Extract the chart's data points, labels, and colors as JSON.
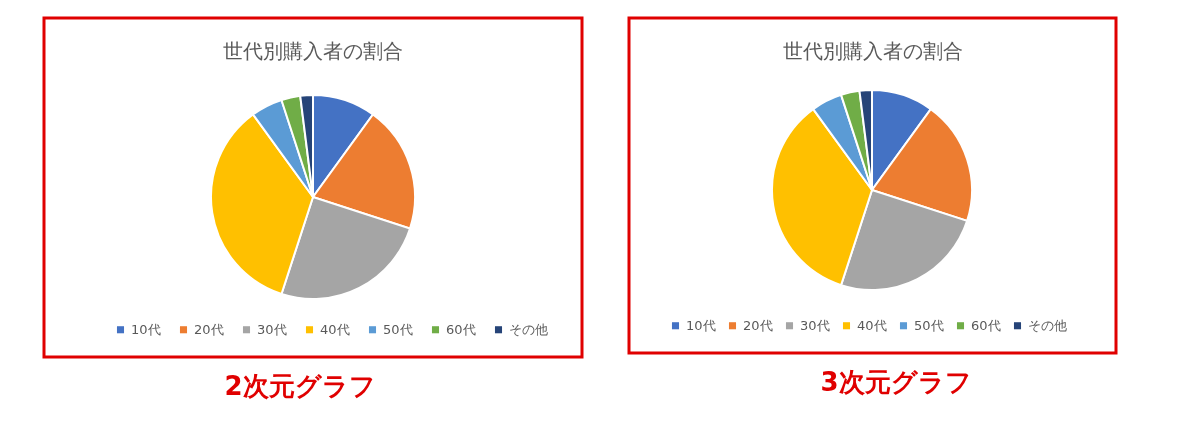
{
  "chart_data": [
    {
      "type": "pie",
      "title": "世代別購入者の割合",
      "categories": [
        "10代",
        "20代",
        "30代",
        "40代",
        "50代",
        "60代",
        "その他"
      ],
      "values": [
        10,
        20,
        25,
        35,
        5,
        3,
        2
      ],
      "colors": [
        "#4472c4",
        "#ed7d31",
        "#a5a5a5",
        "#ffc000",
        "#5b9bd5",
        "#70ad47",
        "#264478"
      ],
      "legend": "bottom",
      "annotations": [
        "2次元グラフ"
      ]
    },
    {
      "type": "pie",
      "title": "世代別購入者の割合",
      "categories": [
        "10代",
        "20代",
        "30代",
        "40代",
        "50代",
        "60代",
        "その他"
      ],
      "values": [
        10,
        20,
        25,
        35,
        5,
        3,
        2
      ],
      "colors": [
        "#4472c4",
        "#ed7d31",
        "#a5a5a5",
        "#ffc000",
        "#5b9bd5",
        "#70ad47",
        "#264478"
      ],
      "legend": "bottom",
      "annotations": [
        "3次元グラフ"
      ]
    }
  ]
}
